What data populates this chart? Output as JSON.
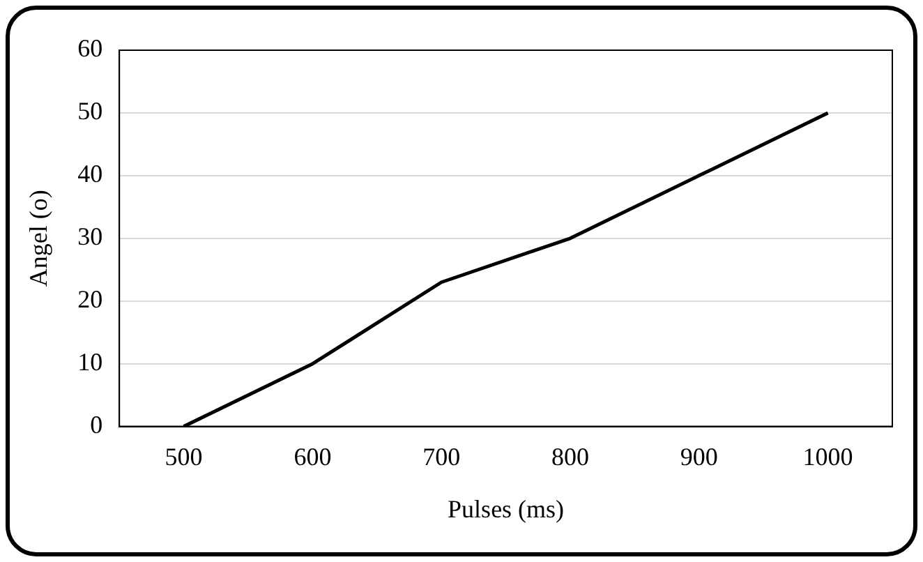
{
  "chart_data": {
    "type": "line",
    "xlabel": "Pulses (ms)",
    "ylabel": "Angel (o)",
    "categories": [
      "500",
      "600",
      "700",
      "800",
      "900",
      "1000"
    ],
    "series": [
      {
        "color": "#000000",
        "values": [
          0,
          10,
          23,
          30,
          40,
          50
        ]
      }
    ],
    "ylim": [
      0,
      60
    ],
    "yticks": [
      0,
      10,
      20,
      30,
      40,
      50,
      60
    ],
    "grid": "y",
    "legend": false,
    "marker": "none",
    "line_style": "solid"
  }
}
